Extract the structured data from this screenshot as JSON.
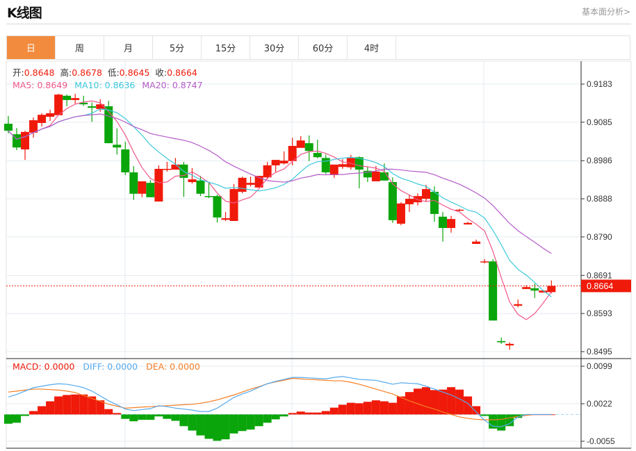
{
  "header": {
    "title": "K线图",
    "link": "基本面分析>"
  },
  "tabs": [
    {
      "label": "日",
      "active": true
    },
    {
      "label": "周",
      "active": false
    },
    {
      "label": "月",
      "active": false
    },
    {
      "label": "5分",
      "active": false
    },
    {
      "label": "15分",
      "active": false
    },
    {
      "label": "30分",
      "active": false
    },
    {
      "label": "60分",
      "active": false
    },
    {
      "label": "4时",
      "active": false
    }
  ],
  "legend": {
    "open_label": "开:",
    "open": "0.8648",
    "high_label": "高:",
    "high": "0.8678",
    "low_label": "低:",
    "low": "0.8645",
    "close_label": "收:",
    "close": "0.8664",
    "ma5": "MA5: 0.8649",
    "ma10": "MA10: 0.8636",
    "ma20": "MA20: 0.8747"
  },
  "macd_legend": {
    "macd": "MACD: 0.0000",
    "diff": "DIFF: 0.0000",
    "dea": "DEA: 0.0000"
  },
  "current_price": "0.8664",
  "colors": {
    "up": "#f01a0a",
    "down": "#0aa50a",
    "ma5": "#f0578a",
    "ma10": "#3cc8dc",
    "ma20": "#b45ac8",
    "diff": "#55aaee",
    "dea": "#f57d23",
    "tab_active": "#f38b3e"
  },
  "chart_data": {
    "type": "candlestick",
    "price_axis": {
      "ticks": [
        "0.9183",
        "0.9085",
        "0.8986",
        "0.8888",
        "0.8790",
        "0.8691",
        "0.8593",
        "0.8495"
      ],
      "range": [
        0.8495,
        0.9183
      ]
    },
    "macd_axis": {
      "ticks": [
        "0.0099",
        "0.0022",
        "-0.0055"
      ],
      "range": [
        -0.0055,
        0.0099
      ]
    },
    "ohlc": [
      [
        0.9081,
        0.9101,
        0.9056,
        0.9063
      ],
      [
        0.9054,
        0.907,
        0.9013,
        0.902
      ],
      [
        0.9015,
        0.9063,
        0.8988,
        0.906
      ],
      [
        0.9058,
        0.9097,
        0.9045,
        0.909
      ],
      [
        0.9083,
        0.9108,
        0.9074,
        0.9104
      ],
      [
        0.9099,
        0.9117,
        0.9088,
        0.9108
      ],
      [
        0.9103,
        0.9158,
        0.9103,
        0.9156
      ],
      [
        0.9153,
        0.9156,
        0.9126,
        0.9142
      ],
      [
        0.9142,
        0.9158,
        0.9133,
        0.9147
      ],
      [
        0.9135,
        0.9153,
        0.9127,
        0.9131
      ],
      [
        0.9126,
        0.9136,
        0.9086,
        0.9122
      ],
      [
        0.9119,
        0.9144,
        0.9112,
        0.9131
      ],
      [
        0.9126,
        0.914,
        0.9031,
        0.9031
      ],
      [
        0.9027,
        0.9069,
        0.9002,
        0.902
      ],
      [
        0.9015,
        0.9035,
        0.8949,
        0.8956
      ],
      [
        0.8956,
        0.8972,
        0.8885,
        0.8901
      ],
      [
        0.8901,
        0.8933,
        0.8892,
        0.8933
      ],
      [
        0.8929,
        0.8936,
        0.8892,
        0.8892
      ],
      [
        0.8881,
        0.8974,
        0.8881,
        0.8965
      ],
      [
        0.8963,
        0.8983,
        0.8958,
        0.8965
      ],
      [
        0.8963,
        0.8993,
        0.8963,
        0.8976
      ],
      [
        0.8976,
        0.8983,
        0.8893,
        0.8942
      ],
      [
        0.8931,
        0.8967,
        0.8927,
        0.8938
      ],
      [
        0.8935,
        0.8947,
        0.8895,
        0.8901
      ],
      [
        0.8895,
        0.8931,
        0.889,
        0.8893
      ],
      [
        0.8895,
        0.8899,
        0.8827,
        0.884
      ],
      [
        0.8834,
        0.8854,
        0.8831,
        0.8838
      ],
      [
        0.8831,
        0.8926,
        0.8831,
        0.8913
      ],
      [
        0.8906,
        0.8945,
        0.8902,
        0.8942
      ],
      [
        0.8924,
        0.8945,
        0.892,
        0.8929
      ],
      [
        0.8917,
        0.8947,
        0.8917,
        0.8947
      ],
      [
        0.8943,
        0.8983,
        0.8938,
        0.8974
      ],
      [
        0.8974,
        0.8988,
        0.8956,
        0.8988
      ],
      [
        0.8979,
        0.901,
        0.8976,
        0.8986
      ],
      [
        0.8985,
        0.9045,
        0.8974,
        0.9024
      ],
      [
        0.9019,
        0.9049,
        0.9019,
        0.9038
      ],
      [
        0.9031,
        0.9051,
        0.8985,
        0.9011
      ],
      [
        0.9006,
        0.904,
        0.8992,
        0.8995
      ],
      [
        0.8993,
        0.9002,
        0.8952,
        0.8956
      ],
      [
        0.8949,
        0.8976,
        0.8942,
        0.8976
      ],
      [
        0.897,
        0.899,
        0.8965,
        0.8977
      ],
      [
        0.8969,
        0.9001,
        0.8963,
        0.8993
      ],
      [
        0.8995,
        0.8997,
        0.8915,
        0.8963
      ],
      [
        0.896,
        0.897,
        0.8931,
        0.8943
      ],
      [
        0.8933,
        0.8972,
        0.8933,
        0.8958
      ],
      [
        0.8956,
        0.8979,
        0.8935,
        0.8935
      ],
      [
        0.8931,
        0.8943,
        0.8826,
        0.8833
      ],
      [
        0.8824,
        0.8879,
        0.882,
        0.8876
      ],
      [
        0.8874,
        0.8899,
        0.8854,
        0.8888
      ],
      [
        0.8879,
        0.8902,
        0.8871,
        0.8895
      ],
      [
        0.8888,
        0.8924,
        0.8881,
        0.8913
      ],
      [
        0.8906,
        0.892,
        0.8829,
        0.8849
      ],
      [
        0.8842,
        0.8854,
        0.8778,
        0.8813
      ],
      [
        0.8813,
        0.8844,
        0.8801,
        0.8836
      ],
      [
        0.8858,
        0.8862,
        0.8856,
        0.886
      ],
      [
        0.8822,
        0.8829,
        0.8822,
        0.8826
      ],
      [
        0.8772,
        0.8783,
        0.8772,
        0.8778
      ],
      [
        0.8725,
        0.8733,
        0.8722,
        0.8727
      ],
      [
        0.8727,
        0.8733,
        0.8575,
        0.8575
      ],
      [
        0.8522,
        0.8531,
        0.8515,
        0.8519
      ],
      [
        0.8511,
        0.8519,
        0.85,
        0.8515
      ],
      [
        0.8613,
        0.8629,
        0.8609,
        0.8617
      ],
      [
        0.8656,
        0.8666,
        0.8656,
        0.8661
      ],
      [
        0.8658,
        0.867,
        0.8633,
        0.8652
      ],
      [
        0.8647,
        0.8654,
        0.8647,
        0.8652
      ],
      [
        0.8648,
        0.8678,
        0.8645,
        0.8664
      ]
    ],
    "macd_hist": [
      -0.0019,
      -0.0017,
      -0.0003,
      0.0007,
      0.0017,
      0.0027,
      0.0037,
      0.004,
      0.0041,
      0.0041,
      0.0037,
      0.0029,
      0.0011,
      0.0003,
      -0.0009,
      -0.0014,
      -0.0011,
      -0.0011,
      -0.0004,
      -0.0009,
      -0.0013,
      -0.0024,
      -0.0033,
      -0.0043,
      -0.005,
      -0.0054,
      -0.0051,
      -0.0039,
      -0.0034,
      -0.0031,
      -0.0024,
      -0.0017,
      -0.001,
      -0.0004,
      0.0003,
      0.0006,
      0.0004,
      0.0004,
      0.0007,
      0.0014,
      0.002,
      0.0024,
      0.0023,
      0.0026,
      0.0029,
      0.0027,
      0.0024,
      0.0037,
      0.0046,
      0.0053,
      0.0056,
      0.005,
      0.0051,
      0.0056,
      0.0051,
      0.0037,
      0.0017,
      -0.0003,
      -0.0029,
      -0.0033,
      -0.0024,
      -0.0007,
      -0.0001,
      0,
      0,
      0
    ],
    "diff": [
      0.0036,
      0.0041,
      0.0048,
      0.0055,
      0.0058,
      0.0061,
      0.0063,
      0.0062,
      0.0059,
      0.0055,
      0.0048,
      0.0038,
      0.0028,
      0.002,
      0.0011,
      0.0008,
      0.001,
      0.0012,
      0.0018,
      0.0016,
      0.0013,
      0.0011,
      0.0009,
      0.0006,
      0.0006,
      0.0013,
      0.0024,
      0.0035,
      0.0042,
      0.0048,
      0.0056,
      0.0063,
      0.0068,
      0.0072,
      0.0076,
      0.0076,
      0.0075,
      0.0074,
      0.0073,
      0.0076,
      0.0078,
      0.0075,
      0.0072,
      0.0071,
      0.007,
      0.0066,
      0.0062,
      0.0065,
      0.0064,
      0.0063,
      0.0058,
      0.0052,
      0.0046,
      0.004,
      0.0032,
      0.0023,
      0.0005,
      -0.0012,
      -0.0024,
      -0.0025,
      -0.0019,
      -0.0005,
      0,
      0,
      0,
      0
    ],
    "dea": [
      0.0046,
      0.0048,
      0.005,
      0.0052,
      0.0052,
      0.0051,
      0.005,
      0.0048,
      0.0045,
      0.0039,
      0.0033,
      0.0027,
      0.0021,
      0.0017,
      0.0013,
      0.0014,
      0.0015,
      0.0016,
      0.0017,
      0.0018,
      0.0019,
      0.002,
      0.0021,
      0.0023,
      0.0026,
      0.003,
      0.0035,
      0.004,
      0.0046,
      0.0052,
      0.0057,
      0.0063,
      0.0067,
      0.007,
      0.0074,
      0.0073,
      0.0072,
      0.0071,
      0.007,
      0.0069,
      0.0069,
      0.0066,
      0.0062,
      0.0057,
      0.0052,
      0.0047,
      0.0042,
      0.0035,
      0.0028,
      0.0022,
      0.0016,
      0.0011,
      0.0005,
      0,
      -0.0005,
      -0.0008,
      -0.001,
      -0.0011,
      -0.0011,
      -0.001,
      -0.0007,
      -0.0004,
      -0.0002,
      0,
      0,
      0
    ]
  }
}
